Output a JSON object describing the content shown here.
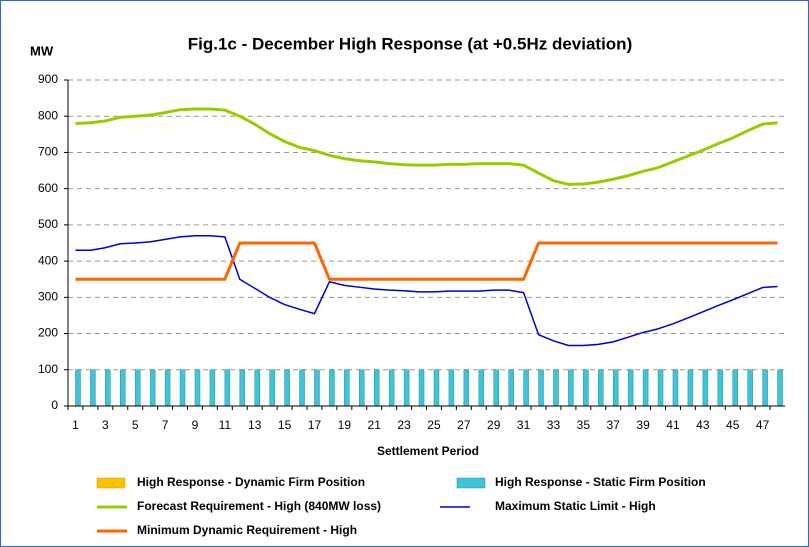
{
  "chart_data": {
    "type": "combo",
    "title": "Fig.1c - December High Response (at +0.5Hz deviation)",
    "y_label": "MW",
    "x_label": "Settlement Period",
    "categories": [
      1,
      null,
      3,
      null,
      5,
      null,
      7,
      null,
      9,
      null,
      11,
      null,
      13,
      null,
      15,
      null,
      17,
      null,
      19,
      null,
      21,
      null,
      23,
      null,
      25,
      null,
      27,
      null,
      29,
      null,
      31,
      null,
      33,
      null,
      35,
      null,
      37,
      null,
      39,
      null,
      41,
      null,
      43,
      null,
      45,
      null,
      47,
      null
    ],
    "ylim": [
      0,
      900
    ],
    "yticks": [
      0,
      100,
      200,
      300,
      400,
      500,
      600,
      700,
      800,
      900
    ],
    "grid": true,
    "legend": "bottom",
    "series": [
      {
        "name": "High Response - Dynamic Firm Position",
        "type": "bar",
        "color": "#ffc000",
        "values": [
          0,
          0,
          0,
          0,
          0,
          0,
          0,
          0,
          0,
          0,
          0,
          0,
          0,
          0,
          0,
          0,
          0,
          0,
          0,
          0,
          0,
          0,
          0,
          0,
          0,
          0,
          0,
          0,
          0,
          0,
          0,
          0,
          0,
          0,
          0,
          0,
          0,
          0,
          0,
          0,
          0,
          0,
          0,
          0,
          0,
          0,
          0,
          0
        ]
      },
      {
        "name": "High Response - Static Firm Position",
        "type": "bar",
        "color": "#3ec3d8",
        "values": [
          100,
          100,
          100,
          100,
          100,
          100,
          100,
          100,
          100,
          100,
          100,
          100,
          100,
          100,
          100,
          100,
          100,
          100,
          100,
          100,
          100,
          100,
          100,
          100,
          100,
          100,
          100,
          100,
          100,
          100,
          100,
          100,
          100,
          100,
          100,
          100,
          100,
          100,
          100,
          100,
          100,
          100,
          100,
          100,
          100,
          100,
          100,
          100
        ]
      },
      {
        "name": "Forecast Requirement - High (840MW loss)",
        "type": "line",
        "color": "#99cc00",
        "values": [
          780,
          782,
          787,
          797,
          800,
          803,
          810,
          818,
          820,
          820,
          817,
          800,
          778,
          752,
          730,
          714,
          705,
          692,
          683,
          677,
          674,
          669,
          666,
          665,
          665,
          667,
          667,
          669,
          669,
          669,
          665,
          643,
          622,
          612,
          613,
          618,
          626,
          636,
          648,
          658,
          674,
          690,
          706,
          724,
          740,
          760,
          778,
          782
        ]
      },
      {
        "name": "Maximum Static Limit - High",
        "type": "line",
        "color": "#0000cc",
        "values": [
          430,
          430,
          437,
          448,
          450,
          453,
          460,
          467,
          470,
          470,
          467,
          350,
          325,
          300,
          280,
          267,
          255,
          343,
          333,
          328,
          323,
          320,
          318,
          315,
          315,
          317,
          317,
          317,
          320,
          320,
          313,
          197,
          180,
          167,
          167,
          170,
          177,
          190,
          203,
          213,
          227,
          243,
          260,
          277,
          293,
          310,
          327,
          330
        ]
      },
      {
        "name": "Minimum Dynamic Requirement - High",
        "type": "line",
        "color": "#ff6600",
        "values": [
          350,
          350,
          350,
          350,
          350,
          350,
          350,
          350,
          350,
          350,
          350,
          450,
          450,
          450,
          450,
          450,
          450,
          350,
          350,
          350,
          350,
          350,
          350,
          350,
          350,
          350,
          350,
          350,
          350,
          350,
          350,
          450,
          450,
          450,
          450,
          450,
          450,
          450,
          450,
          450,
          450,
          450,
          450,
          450,
          450,
          450,
          450,
          450
        ]
      }
    ]
  }
}
